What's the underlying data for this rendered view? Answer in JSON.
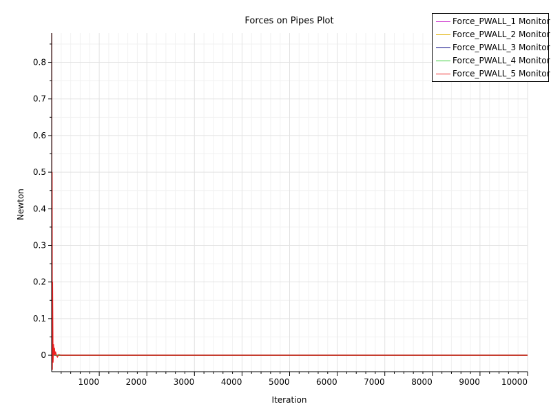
{
  "chart_data": {
    "type": "line",
    "title": "Forces on Pipes Plot",
    "xlabel": "Iteration",
    "ylabel": "Newton",
    "xlim": [
      0,
      10000
    ],
    "ylim": [
      -0.045,
      0.88
    ],
    "xticks": [
      1000,
      2000,
      3000,
      4000,
      5000,
      6000,
      7000,
      8000,
      9000,
      10000
    ],
    "xtick_labels": [
      "1000",
      "2000",
      "3000",
      "4000",
      "5000",
      "6000",
      "7000",
      "8000",
      "9000",
      "10000"
    ],
    "yticks": [
      0,
      0.1,
      0.2,
      0.3,
      0.4,
      0.5,
      0.6,
      0.7,
      0.8
    ],
    "ytick_labels": [
      "0",
      "0.1",
      "0.2",
      "0.3",
      "0.4",
      "0.5",
      "0.6",
      "0.7",
      "0.8"
    ],
    "grid": true,
    "legend_position": "top-right",
    "series": [
      {
        "name": "Force_PWALL_1 Monitor",
        "color": "#cc33cc",
        "x": [
          1,
          20,
          40,
          60,
          80,
          100,
          150,
          200,
          300,
          500,
          10000
        ],
        "y": [
          0.0,
          0.01,
          0.005,
          0.0,
          0.001,
          0.0,
          0.0,
          0.0,
          0.0,
          0.0,
          0.0
        ]
      },
      {
        "name": "Force_PWALL_2 Monitor",
        "color": "#e0b000",
        "x": [
          1,
          20,
          40,
          60,
          80,
          100,
          150,
          200,
          300,
          500,
          10000
        ],
        "y": [
          0.0,
          0.01,
          0.005,
          0.0,
          0.001,
          0.0,
          0.0,
          0.0,
          0.0,
          0.0,
          0.0
        ]
      },
      {
        "name": "Force_PWALL_3 Monitor",
        "color": "#000080",
        "x": [
          1,
          20,
          40,
          60,
          80,
          100,
          150,
          200,
          300,
          500,
          10000
        ],
        "y": [
          0.0,
          0.005,
          0.002,
          0.0,
          0.0,
          0.0,
          0.0,
          0.0,
          0.0,
          0.0,
          0.0
        ]
      },
      {
        "name": "Force_PWALL_4 Monitor",
        "color": "#33cc33",
        "x": [
          1,
          20,
          40,
          60,
          80,
          100,
          150,
          200,
          300,
          500,
          10000
        ],
        "y": [
          0.0,
          0.01,
          0.005,
          0.0,
          0.001,
          0.0,
          0.0,
          0.0,
          0.0,
          0.0,
          0.0
        ]
      },
      {
        "name": "Force_PWALL_5 Monitor",
        "color": "#ee2222",
        "x": [
          1,
          5,
          10,
          15,
          20,
          30,
          40,
          50,
          60,
          70,
          80,
          100,
          120,
          150,
          200,
          300,
          500,
          10000
        ],
        "y": [
          0.88,
          -0.04,
          0.5,
          -0.04,
          0.2,
          -0.02,
          0.03,
          0.0,
          0.02,
          0.0,
          0.01,
          0.0,
          -0.005,
          0.002,
          0.0,
          0.0,
          0.0,
          0.0
        ]
      }
    ]
  }
}
